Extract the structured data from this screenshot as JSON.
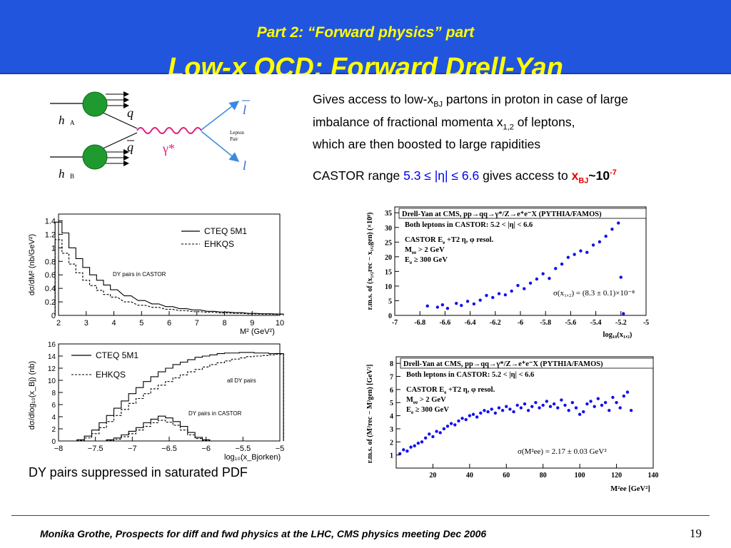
{
  "header": {
    "subtitle": "Part 2: “Forward physics” part",
    "title": "Low-x QCD: Forward Drell-Yan"
  },
  "text": {
    "l1_pre": "Gives access to low-x",
    "l1_sub": "BJ",
    "l1_post": " partons in proton in case of large",
    "l2_pre": " imbalance of fractional momenta x",
    "l2_sub": "1,2",
    "l2_post": " of leptons,",
    "l3": "which are then boosted to large rapidities",
    "castor_pre": "CASTOR range ",
    "castor_range": "5.3 ≤ |η| ≤ 6.6",
    "castor_mid": " gives access to ",
    "castor_x": "x",
    "castor_xsub": "BJ",
    "castor_approx": "~10",
    "castor_exp": "-7"
  },
  "diagram": {
    "hA": "h",
    "hA_sub": "A",
    "hB": "h",
    "hB_sub": "B",
    "q": "q",
    "qbar": "q",
    "gamma": "γ*",
    "lbar": "l",
    "l": "l",
    "pair1": "Lepton",
    "pair2": "Pair"
  },
  "caption": "DY pairs suppressed in saturated PDF",
  "footer": {
    "text": "Monika Grothe, Prospects for diff and fwd physics at the LHC, CMS physics meeting Dec 2006",
    "page": "19"
  },
  "chart_data": [
    {
      "type": "line",
      "ylabel": "dσ/dM² (nb/GeV²)",
      "xlabel": "M² (GeV²)",
      "xlim": [
        2,
        10
      ],
      "ylim": [
        0,
        1.5
      ],
      "xticks": [
        "2",
        "3",
        "4",
        "5",
        "6",
        "7",
        "8",
        "9",
        "10"
      ],
      "yticks": [
        "0",
        "0.2",
        "0.4",
        "0.6",
        "0.8",
        "1",
        "1.2",
        "1.4"
      ],
      "annotation": "DY pairs in CASTOR",
      "series": [
        {
          "name": "CTEQ 5M1",
          "style": "solid",
          "x": [
            2,
            2.25,
            2.5,
            2.75,
            3,
            3.25,
            3.5,
            3.75,
            4,
            4.5,
            5,
            5.5,
            6,
            6.5,
            7,
            7.5,
            8,
            8.5,
            9,
            9.5,
            10
          ],
          "y": [
            1.38,
            1.22,
            1.0,
            0.84,
            0.71,
            0.6,
            0.52,
            0.45,
            0.38,
            0.29,
            0.22,
            0.17,
            0.13,
            0.1,
            0.08,
            0.06,
            0.05,
            0.04,
            0.03,
            0.025,
            0.02
          ]
        },
        {
          "name": "EHKQS",
          "style": "dashed",
          "x": [
            2,
            2.25,
            2.5,
            2.75,
            3,
            3.25,
            3.5,
            3.75,
            4,
            4.5,
            5,
            5.5,
            6,
            6.5,
            7,
            7.5,
            8,
            8.5,
            9,
            9.5,
            10
          ],
          "y": [
            1.12,
            0.92,
            0.76,
            0.63,
            0.52,
            0.44,
            0.37,
            0.31,
            0.27,
            0.2,
            0.15,
            0.12,
            0.09,
            0.07,
            0.055,
            0.045,
            0.035,
            0.03,
            0.022,
            0.018,
            0.015
          ]
        }
      ]
    },
    {
      "type": "line",
      "ylabel": "dσ/dlog₁₀(x_Bj) (nb)",
      "xlabel": "log₁₀(x_Bjorken)",
      "xlim": [
        -8,
        -5
      ],
      "ylim": [
        0,
        16
      ],
      "xticks": [
        "−8",
        "−7.5",
        "−7",
        "−6.5",
        "−6",
        "−5.5",
        "−5"
      ],
      "yticks": [
        "0",
        "2",
        "4",
        "6",
        "8",
        "10",
        "12",
        "14",
        "16"
      ],
      "annotations": [
        "all DY pairs",
        "DY pairs in CASTOR"
      ],
      "series": [
        {
          "name": "CTEQ 5M1",
          "style": "solid",
          "group": "all",
          "x": [
            -7.7,
            -7.6,
            -7.5,
            -7.4,
            -7.3,
            -7.2,
            -7.1,
            -7.0,
            -6.9,
            -6.8,
            -6.7,
            -6.6,
            -6.5,
            -6.4,
            -6.3,
            -6.2,
            -6.1,
            -6.0,
            -5.9,
            -5.8,
            -5.7,
            -5.6,
            -5.5,
            -5.4,
            -5.3,
            -5.2,
            -5.1,
            -5.0
          ],
          "y": [
            0.2,
            0.8,
            1.8,
            3.0,
            4.2,
            5.4,
            6.6,
            7.8,
            8.8,
            9.8,
            10.6,
            11.4,
            12.0,
            12.6,
            13.0,
            13.4,
            13.8,
            14.0,
            14.2,
            14.4,
            14.5,
            14.5,
            14.6,
            14.6,
            14.5,
            14.5,
            14.4,
            14.4
          ]
        },
        {
          "name": "EHKQS",
          "style": "dashed",
          "group": "all",
          "x": [
            -7.7,
            -7.6,
            -7.5,
            -7.4,
            -7.3,
            -7.2,
            -7.1,
            -7.0,
            -6.9,
            -6.8,
            -6.7,
            -6.6,
            -6.5,
            -6.4,
            -6.3,
            -6.2,
            -6.1,
            -6.0,
            -5.9,
            -5.8,
            -5.7,
            -5.6,
            -5.5,
            -5.4,
            -5.3,
            -5.2,
            -5.1,
            -5.0
          ],
          "y": [
            0.1,
            0.5,
            1.2,
            2.2,
            3.2,
            4.2,
            5.2,
            6.2,
            7.0,
            7.8,
            8.6,
            9.2,
            9.8,
            10.4,
            10.9,
            11.4,
            11.8,
            12.2,
            12.6,
            12.9,
            13.2,
            13.5,
            13.7,
            13.9,
            14.0,
            14.1,
            14.2,
            14.3
          ]
        },
        {
          "name": "CTEQ 5M1 (CASTOR)",
          "style": "solid",
          "group": "castor",
          "x": [
            -7.3,
            -7.2,
            -7.1,
            -7.0,
            -6.9,
            -6.8,
            -6.7,
            -6.6,
            -6.5,
            -6.4,
            -6.3,
            -6.2,
            -6.1,
            -6.0
          ],
          "y": [
            0.2,
            0.5,
            1.0,
            1.6,
            2.2,
            3.0,
            3.6,
            4.1,
            3.8,
            3.2,
            2.4,
            1.4,
            0.6,
            0.2
          ]
        },
        {
          "name": "EHKQS (CASTOR)",
          "style": "dashed",
          "group": "castor",
          "x": [
            -7.3,
            -7.2,
            -7.1,
            -7.0,
            -6.9,
            -6.8,
            -6.7,
            -6.6,
            -6.5,
            -6.4,
            -6.3,
            -6.2,
            -6.1,
            -6.0
          ],
          "y": [
            0.1,
            0.3,
            0.7,
            1.2,
            1.8,
            2.4,
            3.0,
            3.4,
            3.1,
            2.6,
            1.8,
            1.0,
            0.4,
            0.1
          ]
        }
      ]
    },
    {
      "type": "scatter",
      "title": "Drell-Yan at CMS, pp→qq→γ*/Z→e⁺e⁻X (PYTHIA/FAMOS)",
      "info": [
        "Both leptons in CASTOR: 5.2 < |η| < 6.6",
        "CASTOR E",
        "e",
        " +T2 η, φ resol.",
        "M",
        "ee",
        " > 2 GeV",
        "E",
        "e",
        " ≥ 300 GeV"
      ],
      "formula": "σ(x₁,₂) = (8.3 ± 0.1)×10⁻⁸",
      "ylabel": "r.m.s. of (x₁,₂rec − x₁,₂gen) (×10⁸)",
      "xlabel": "log₁₀(x₁,₂)",
      "xlim": [
        -7,
        -5
      ],
      "ylim": [
        0,
        37
      ],
      "xticks": [
        "-7",
        "-6.8",
        "-6.6",
        "-6.4",
        "-6.2",
        "-6",
        "-5.8",
        "-5.6",
        "-5.4",
        "-5.2",
        "-5"
      ],
      "yticks": [
        "0",
        "5",
        "10",
        "15",
        "20",
        "25",
        "30",
        "35"
      ],
      "x": [
        -6.74,
        -6.66,
        -6.62,
        -6.58,
        -6.51,
        -6.47,
        -6.42,
        -6.37,
        -6.32,
        -6.27,
        -6.22,
        -6.17,
        -6.12,
        -6.07,
        -6.02,
        -5.97,
        -5.92,
        -5.87,
        -5.82,
        -5.77,
        -5.72,
        -5.67,
        -5.62,
        -5.57,
        -5.52,
        -5.47,
        -5.42,
        -5.37,
        -5.32,
        -5.27,
        -5.22,
        -5.2,
        -5.18
      ],
      "y": [
        3.2,
        2.8,
        3.6,
        2.4,
        4.1,
        3.4,
        4.8,
        3.9,
        5.2,
        6.8,
        6.1,
        7.4,
        7.0,
        8.3,
        10.2,
        9.1,
        11.0,
        12.4,
        14.2,
        12.6,
        16.0,
        17.5,
        19.8,
        20.8,
        22.0,
        21.5,
        24.0,
        25.1,
        27.0,
        29.4,
        31.5,
        13.0,
        0.6
      ]
    },
    {
      "type": "scatter",
      "title": "Drell-Yan at CMS, pp→qq→γ*/Z→e⁺e⁻X (PYTHIA/FAMOS)",
      "info": [
        "Both leptons in CASTOR: 5.2 < |η| < 6.6",
        "CASTOR E",
        "e",
        " +T2 η, φ resol.",
        "M",
        "ee",
        " > 2 GeV",
        "E",
        "e",
        " ≥ 300 GeV"
      ],
      "formula": "σ(M²ee) = 2.17 ± 0.03 GeV²",
      "ylabel": "r.m.s. of (M²rec − M²gen) [GeV²]",
      "xlabel": "M²ee [GeV²]",
      "xlim": [
        0,
        140
      ],
      "ylim": [
        0,
        8.5
      ],
      "xticks": [
        "20",
        "40",
        "60",
        "80",
        "100",
        "120",
        "140"
      ],
      "yticks": [
        "1",
        "2",
        "3",
        "4",
        "5",
        "6",
        "7",
        "8"
      ],
      "x": [
        2,
        4,
        6,
        8,
        10,
        12,
        14,
        16,
        18,
        20,
        22,
        24,
        26,
        28,
        30,
        32,
        34,
        36,
        38,
        40,
        42,
        44,
        46,
        48,
        50,
        52,
        54,
        56,
        58,
        60,
        62,
        64,
        66,
        68,
        70,
        72,
        74,
        76,
        78,
        80,
        82,
        84,
        86,
        88,
        90,
        92,
        94,
        96,
        98,
        100,
        102,
        104,
        106,
        108,
        110,
        112,
        114,
        116,
        118,
        120,
        122,
        124,
        126,
        128
      ],
      "y": [
        1.1,
        1.4,
        1.3,
        1.6,
        1.7,
        1.9,
        2.0,
        2.3,
        2.6,
        2.4,
        2.8,
        2.7,
        3.0,
        3.2,
        3.4,
        3.3,
        3.6,
        3.8,
        3.7,
        4.0,
        4.1,
        3.9,
        4.2,
        4.4,
        4.3,
        4.5,
        4.2,
        4.6,
        4.4,
        4.7,
        4.5,
        4.3,
        4.8,
        4.6,
        4.9,
        4.4,
        4.7,
        5.0,
        4.6,
        4.8,
        5.1,
        4.7,
        4.9,
        4.6,
        5.2,
        4.8,
        4.4,
        5.0,
        4.6,
        4.1,
        4.3,
        4.9,
        5.1,
        4.7,
        5.3,
        4.8,
        5.0,
        4.4,
        5.4,
        5.0,
        4.6,
        5.5,
        5.8,
        4.4
      ]
    }
  ]
}
